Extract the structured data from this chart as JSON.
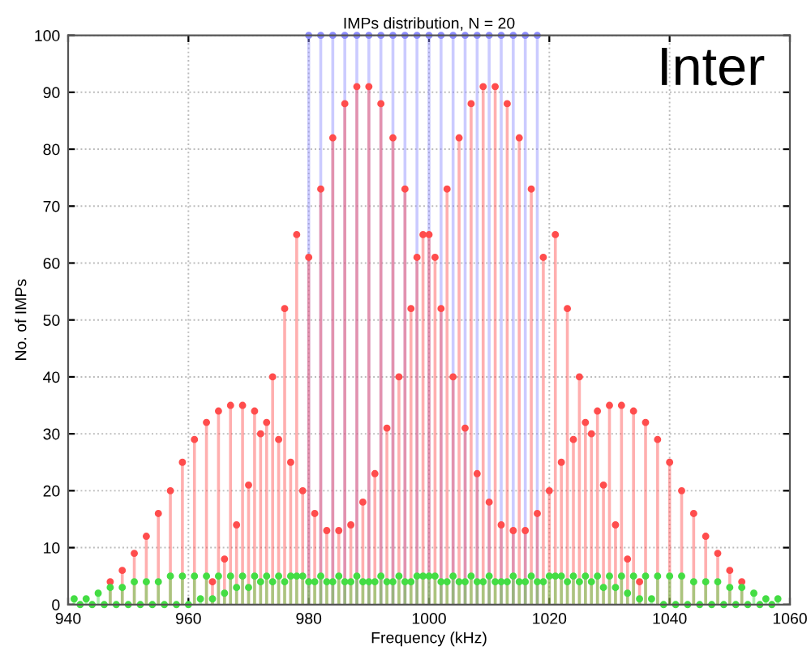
{
  "chart_data": {
    "type": "lollipop",
    "title": "IMPs distribution, N = 20",
    "xlabel": "Frequency (kHz)",
    "ylabel": "No. of IMPs",
    "annotations": [
      "Inter"
    ],
    "xlim": [
      940,
      1060
    ],
    "xticks": [
      940,
      960,
      980,
      1000,
      1020,
      1040,
      1060
    ],
    "ylim": [
      0,
      100
    ],
    "yticks": [
      0,
      10,
      20,
      30,
      40,
      50,
      60,
      70,
      80,
      90,
      100
    ],
    "grid": true,
    "series": [
      {
        "color": "#8c8cff",
        "marker": "circle",
        "x": [
          980,
          982,
          984,
          986,
          988,
          990,
          992,
          994,
          996,
          998,
          1000,
          1002,
          1004,
          1006,
          1008,
          1010,
          1012,
          1014,
          1016,
          1018
        ],
        "values": [
          100,
          100,
          100,
          100,
          100,
          100,
          100,
          100,
          100,
          100,
          100,
          100,
          100,
          100,
          100,
          100,
          100,
          100,
          100,
          100
        ]
      },
      {
        "color": "#ff4d4d",
        "marker": "circle",
        "x": [
          947,
          949,
          951,
          953,
          955,
          957,
          959,
          961,
          963,
          964,
          965,
          966,
          967,
          968,
          969,
          970,
          971,
          972,
          973,
          974,
          975,
          976,
          977,
          978,
          979,
          980,
          981,
          982,
          983,
          984,
          985,
          986,
          987,
          988,
          989,
          990,
          991,
          992,
          993,
          994,
          995,
          996,
          997,
          998,
          999,
          1000,
          1001,
          1002,
          1003,
          1004,
          1005,
          1006,
          1007,
          1008,
          1009,
          1010,
          1011,
          1012,
          1013,
          1014,
          1015,
          1016,
          1017,
          1018,
          1019,
          1020,
          1021,
          1022,
          1023,
          1024,
          1025,
          1026,
          1027,
          1028,
          1029,
          1030,
          1031,
          1032,
          1033,
          1034,
          1035,
          1036,
          1038,
          1040,
          1042,
          1044,
          1046,
          1048,
          1050,
          1052
        ],
        "values": [
          4,
          6,
          9,
          12,
          16,
          20,
          25,
          29,
          32,
          4,
          34,
          8,
          35,
          14,
          35,
          21,
          34,
          30,
          32,
          40,
          29,
          52,
          25,
          65,
          20,
          61,
          16,
          73,
          13,
          82,
          13,
          88,
          14,
          91,
          18,
          91,
          23,
          88,
          31,
          82,
          40,
          73,
          52,
          61,
          65,
          65,
          61,
          52,
          73,
          40,
          82,
          31,
          88,
          23,
          91,
          18,
          91,
          14,
          88,
          13,
          82,
          13,
          73,
          16,
          61,
          20,
          65,
          25,
          52,
          29,
          40,
          32,
          30,
          34,
          21,
          35,
          14,
          35,
          8,
          34,
          4,
          32,
          29,
          25,
          20,
          16,
          12,
          9,
          6,
          4
        ]
      },
      {
        "color": "#44dd44",
        "marker": "circle",
        "x": [
          941,
          942,
          943,
          944,
          945,
          946,
          947,
          948,
          949,
          950,
          951,
          952,
          953,
          954,
          955,
          956,
          957,
          958,
          959,
          960,
          961,
          962,
          963,
          964,
          965,
          966,
          967,
          968,
          969,
          970,
          971,
          972,
          973,
          974,
          975,
          976,
          977,
          978,
          979,
          980,
          981,
          982,
          983,
          984,
          985,
          986,
          987,
          988,
          989,
          990,
          991,
          992,
          993,
          994,
          995,
          996,
          997,
          998,
          999,
          1000,
          1001,
          1002,
          1003,
          1004,
          1005,
          1006,
          1007,
          1008,
          1009,
          1010,
          1011,
          1012,
          1013,
          1014,
          1015,
          1016,
          1017,
          1018,
          1019,
          1020,
          1021,
          1022,
          1023,
          1024,
          1025,
          1026,
          1027,
          1028,
          1029,
          1030,
          1031,
          1032,
          1033,
          1034,
          1035,
          1036,
          1037,
          1038,
          1039,
          1040,
          1041,
          1042,
          1043,
          1044,
          1045,
          1046,
          1047,
          1048,
          1049,
          1050,
          1051,
          1052,
          1053,
          1054,
          1055,
          1056,
          1057,
          1058
        ],
        "values": [
          1,
          0,
          1,
          0,
          2,
          0,
          3,
          0,
          3,
          0,
          4,
          0,
          4,
          0,
          4,
          0,
          5,
          0,
          5,
          0,
          5,
          1,
          5,
          1,
          5,
          2,
          5,
          3,
          5,
          3,
          5,
          4,
          5,
          4,
          5,
          4,
          5,
          5,
          5,
          4,
          4,
          5,
          4,
          4,
          5,
          4,
          4,
          5,
          4,
          4,
          4,
          5,
          4,
          4,
          5,
          4,
          4,
          5,
          5,
          5,
          5,
          4,
          4,
          5,
          4,
          4,
          5,
          4,
          4,
          5,
          4,
          4,
          4,
          5,
          4,
          4,
          5,
          4,
          4,
          5,
          5,
          5,
          4,
          5,
          4,
          5,
          4,
          5,
          3,
          5,
          3,
          5,
          2,
          5,
          1,
          5,
          1,
          5,
          0,
          5,
          0,
          5,
          0,
          4,
          0,
          4,
          0,
          4,
          0,
          3,
          0,
          3,
          0,
          2,
          0,
          1,
          0,
          1
        ]
      }
    ]
  }
}
